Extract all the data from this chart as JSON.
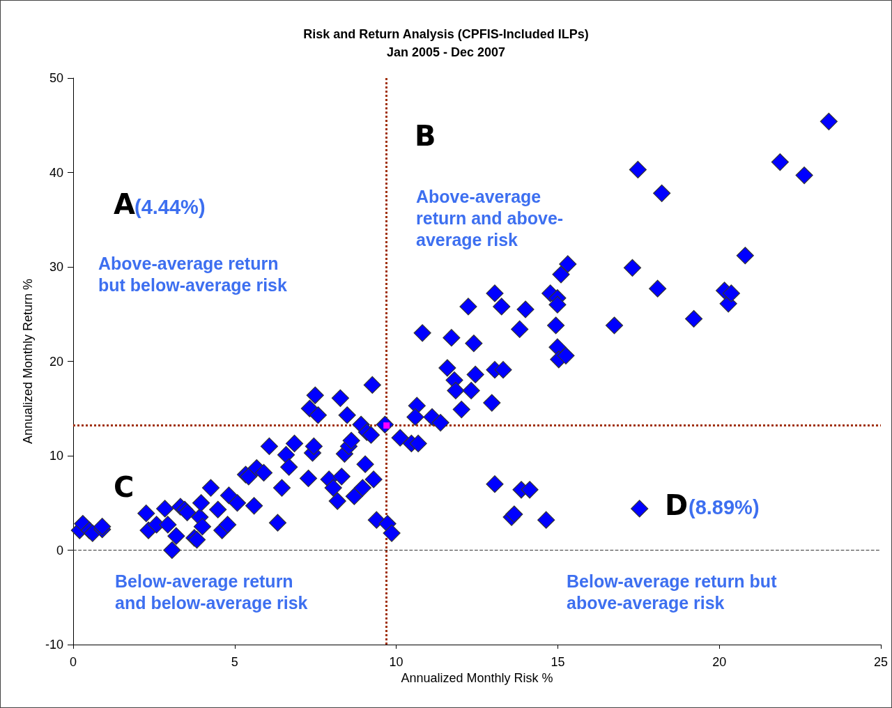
{
  "chart_data": {
    "type": "scatter",
    "title": "Risk and Return Analysis (CPFIS-Included ILPs)",
    "subtitle": "Jan 2005 - Dec 2007",
    "xlabel": "Annualized Monthly Risk %",
    "ylabel": "Annualized Monthly Return %",
    "xlim": [
      0,
      25
    ],
    "xticks": [
      0,
      5,
      10,
      15,
      20,
      25
    ],
    "ylim": [
      -10,
      50
    ],
    "yticks": [
      -10,
      0,
      10,
      20,
      30,
      40,
      50
    ],
    "marker": "diamond",
    "series": [
      {
        "color": "#0000ff",
        "x": [
          0.2,
          0.3,
          0.5,
          0.6,
          0.9,
          0.9,
          2.26,
          2.33,
          2.58,
          2.84,
          2.93,
          3.06,
          3.19,
          3.32,
          3.45,
          3.53,
          3.75,
          3.83,
          3.92,
          3.96,
          4.0,
          4.26,
          4.48,
          4.61,
          4.78,
          4.82,
          5.08,
          5.34,
          5.43,
          5.6,
          5.68,
          5.9,
          6.07,
          6.33,
          6.46,
          6.59,
          6.68,
          6.85,
          7.32,
          7.41,
          7.45,
          7.49,
          7.58,
          7.28,
          7.92,
          8.05,
          8.18,
          8.27,
          8.4,
          8.48,
          8.53,
          8.61,
          8.7,
          8.91,
          8.96,
          9.04,
          9.09,
          9.22,
          9.26,
          9.3,
          9.39,
          9.73,
          9.86,
          9.65,
          8.31,
          10.12,
          10.47,
          10.68,
          10.64,
          10.81,
          10.59,
          11.11,
          11.37,
          11.58,
          11.71,
          11.8,
          11.84,
          12.02,
          12.32,
          12.4,
          12.45,
          12.96,
          13.05,
          13.05,
          13.26,
          13.31,
          13.82,
          14.0,
          14.77,
          14.94,
          14.99,
          14.99,
          14.99,
          15.03,
          15.25,
          15.1,
          15.31,
          12.23,
          16.75,
          17.31,
          17.48,
          18.09,
          18.22,
          19.21,
          20.16,
          20.28,
          20.37,
          20.8,
          21.88,
          22.63,
          23.39,
          13.05,
          13.57,
          13.65,
          13.87,
          14.13,
          14.64,
          17.53
        ],
        "values": [
          2.1,
          2.8,
          2.1,
          1.8,
          2.2,
          2.5,
          3.9,
          2.1,
          2.7,
          4.4,
          2.7,
          0.0,
          1.5,
          4.6,
          4.3,
          4.0,
          1.3,
          1.1,
          3.5,
          5.0,
          2.5,
          6.6,
          4.3,
          2.1,
          2.7,
          5.8,
          5.0,
          8.0,
          7.8,
          4.7,
          8.7,
          8.2,
          11.0,
          2.9,
          6.6,
          10.1,
          8.8,
          11.3,
          15.0,
          10.3,
          11.0,
          16.4,
          14.3,
          7.6,
          7.5,
          6.6,
          5.2,
          16.1,
          10.2,
          14.3,
          11.0,
          11.6,
          5.7,
          13.3,
          6.6,
          9.1,
          12.5,
          12.2,
          17.5,
          7.5,
          3.2,
          2.8,
          1.8,
          13.3,
          7.8,
          11.9,
          11.3,
          11.3,
          15.3,
          23.0,
          14.1,
          14.1,
          13.5,
          19.3,
          22.5,
          18.0,
          16.9,
          14.9,
          16.9,
          21.9,
          18.6,
          15.6,
          27.2,
          19.1,
          25.8,
          19.1,
          23.4,
          25.5,
          27.2,
          23.8,
          26.7,
          26.0,
          21.5,
          20.2,
          20.6,
          29.2,
          30.3,
          25.8,
          23.8,
          29.9,
          40.3,
          27.7,
          37.8,
          24.5,
          27.5,
          26.1,
          27.2,
          31.2,
          41.1,
          39.7,
          45.4,
          7.0,
          3.5,
          3.8,
          6.4,
          6.4,
          3.2,
          4.4
        ]
      },
      {
        "color": "#ff00ff",
        "marker": "square",
        "x": [
          9.7
        ],
        "values": [
          13.2
        ]
      }
    ],
    "ref_lines": [
      {
        "axis": "x",
        "value": 9.7,
        "color": "#a0300a",
        "line_style": "dotted"
      },
      {
        "axis": "y",
        "value": 13.2,
        "color": "#a0300a",
        "line_style": "dotted"
      },
      {
        "axis": "y",
        "value": 0,
        "color": "#333333",
        "line_style": "dashed"
      }
    ],
    "annotations": [
      "A",
      "(4.44%)",
      "B",
      "Above-average\nreturn and above-\naverage risk",
      "Above-average return\nbut below-average risk",
      "C",
      "Below-average return\nand below-average risk",
      "D",
      "(8.89%)",
      "Below-average return but\nabove-average risk"
    ]
  }
}
